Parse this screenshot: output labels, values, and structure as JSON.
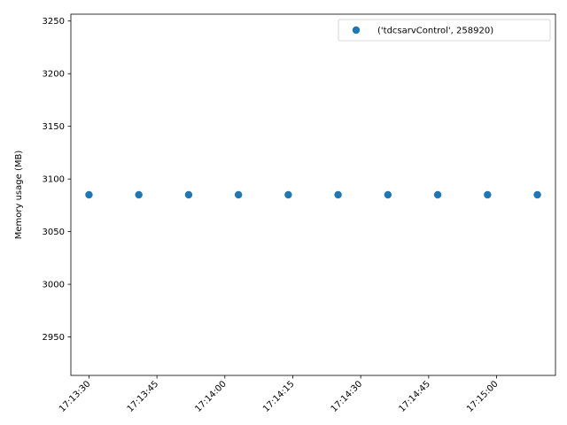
{
  "chart_data": {
    "type": "scatter",
    "title": "",
    "xlabel": "",
    "ylabel": "Memory usage (MB)",
    "x": [
      "17:13:30",
      "17:13:41",
      "17:13:52",
      "17:14:03",
      "17:14:14",
      "17:14:25",
      "17:14:36",
      "17:14:47",
      "17:14:58",
      "17:15:09"
    ],
    "series": [
      {
        "name": "('tdcsarvControl', 258920)",
        "color": "#1f77b4",
        "values": [
          3085,
          3085,
          3085,
          3085,
          3085,
          3085,
          3085,
          3085,
          3085,
          3085
        ]
      }
    ],
    "xticks": [
      "17:13:30",
      "17:13:45",
      "17:14:00",
      "17:14:15",
      "17:14:30",
      "17:14:45",
      "17:15:00"
    ],
    "xlim": [
      "17:13:26",
      "17:15:13"
    ],
    "ylim": [
      2913.5,
      3256.5
    ],
    "yticks": [
      2950,
      3000,
      3050,
      3100,
      3150,
      3200,
      3250
    ],
    "grid": false,
    "legend_position": "top-right"
  }
}
